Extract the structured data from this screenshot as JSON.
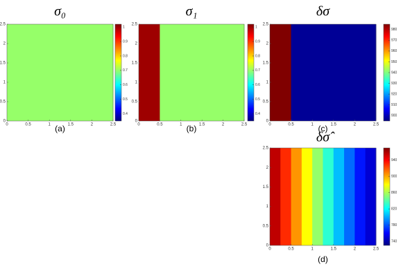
{
  "chart_data": [
    {
      "type": "heatmap",
      "title": "σ₀",
      "label": "(a)",
      "xlim": [
        0,
        2.5
      ],
      "ylim": [
        0,
        2.5
      ],
      "xticks": [
        0,
        0.5,
        1,
        1.5,
        2,
        2.5
      ],
      "yticks": [
        0,
        0.5,
        1,
        1.5,
        2,
        2.5
      ],
      "clim": [
        0.35,
        1.02
      ],
      "cticks": [
        0.4,
        0.5,
        0.6,
        0.7,
        0.8,
        0.9,
        1
      ],
      "xbins": [
        0,
        2.5
      ],
      "values": [
        0.7
      ]
    },
    {
      "type": "heatmap",
      "title": "σ₁",
      "label": "(b)",
      "xlim": [
        0,
        2.5
      ],
      "ylim": [
        0,
        2.5
      ],
      "xticks": [
        0,
        0.5,
        1,
        1.5,
        2,
        2.5
      ],
      "yticks": [
        0,
        0.5,
        1,
        1.5,
        2,
        2.5
      ],
      "clim": [
        0.35,
        1.02
      ],
      "cticks": [
        0.4,
        0.5,
        0.6,
        0.7,
        0.8,
        0.9,
        1
      ],
      "xbins": [
        0,
        0.5,
        2.5
      ],
      "values": [
        1,
        0.7
      ]
    },
    {
      "type": "heatmap",
      "title": "δσ",
      "label": "(c)",
      "xlim": [
        0,
        2.5
      ],
      "ylim": [
        0,
        2.5
      ],
      "xticks": [
        0,
        0.5,
        1,
        1.5,
        2,
        2.5
      ],
      "yticks": [
        0,
        0.5,
        1,
        1.5,
        2,
        2.5
      ],
      "clim": [
        895,
        985
      ],
      "cticks": [
        900,
        910,
        920,
        930,
        940,
        950,
        960,
        970,
        980
      ],
      "xbins": [
        0,
        0.5,
        2.5
      ],
      "values": [
        985,
        897
      ]
    },
    {
      "type": "heatmap",
      "title": "δσ̂",
      "label": "(d)",
      "xlim": [
        0,
        2.5
      ],
      "ylim": [
        0,
        2.5
      ],
      "xticks": [
        0,
        0.5,
        1,
        1.5,
        2,
        2.5
      ],
      "yticks": [
        0,
        0.5,
        1,
        1.5,
        2,
        2.5
      ],
      "clim": [
        730,
        970
      ],
      "cticks": [
        740,
        780,
        820,
        860,
        900,
        940
      ],
      "xbins": [
        0,
        0.25,
        0.5,
        0.75,
        1,
        1.25,
        1.5,
        1.75,
        2,
        2.25,
        2.5
      ],
      "values": [
        955,
        930,
        905,
        880,
        855,
        830,
        805,
        785,
        765,
        750
      ]
    }
  ]
}
